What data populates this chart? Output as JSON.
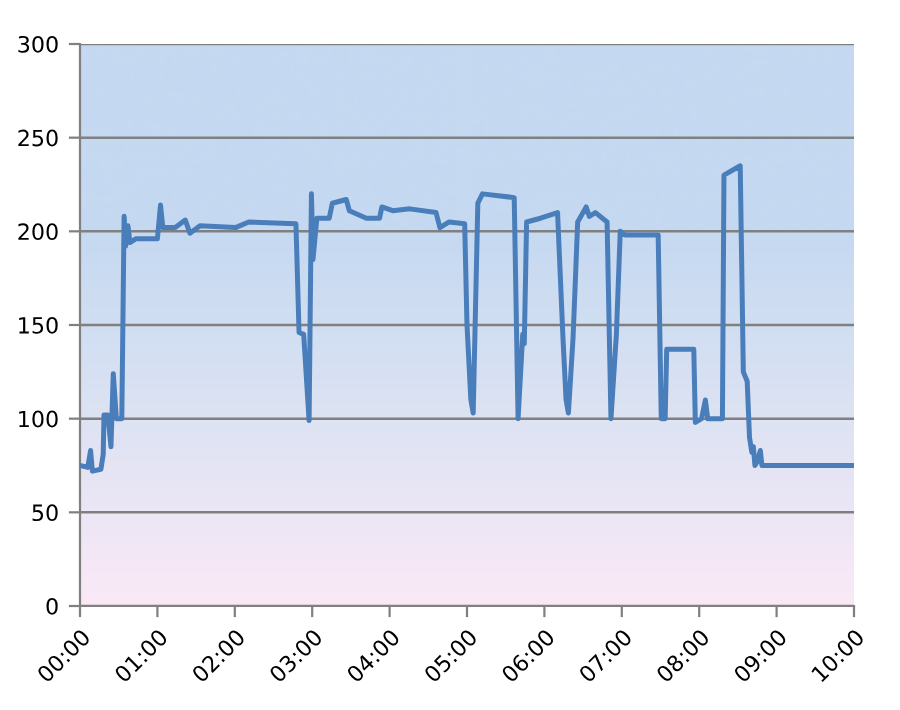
{
  "chart_data": {
    "type": "line",
    "x": [
      0.0,
      0.1,
      0.137,
      0.16,
      0.27,
      0.3,
      0.31,
      0.36,
      0.4,
      0.43,
      0.47,
      0.54,
      0.57,
      0.59,
      0.62,
      0.645,
      0.72,
      1.0,
      1.04,
      1.07,
      1.23,
      1.36,
      1.42,
      1.55,
      2.01,
      2.18,
      2.79,
      2.83,
      2.89,
      2.96,
      2.99,
      3.01,
      3.06,
      3.22,
      3.26,
      3.44,
      3.48,
      3.7,
      3.87,
      3.9,
      4.04,
      4.26,
      4.6,
      4.65,
      4.77,
      4.97,
      5.0,
      5.05,
      5.08,
      5.14,
      5.2,
      5.61,
      5.66,
      5.72,
      5.74,
      5.77,
      5.95,
      6.17,
      6.24,
      6.28,
      6.31,
      6.37,
      6.43,
      6.54,
      6.58,
      6.66,
      6.81,
      6.86,
      6.93,
      6.98,
      7.05,
      7.47,
      7.51,
      7.56,
      7.58,
      7.6,
      7.93,
      7.95,
      8.03,
      8.08,
      8.11,
      8.3,
      8.32,
      8.53,
      8.57,
      8.62,
      8.65,
      8.68,
      8.7,
      8.72,
      8.75,
      8.79,
      8.81,
      10.0
    ],
    "series": [
      {
        "color": "#4a7ebb",
        "values": [
          75,
          74,
          83,
          72,
          73,
          81,
          102,
          102,
          85,
          124,
          100,
          100,
          208,
          192,
          203,
          194,
          196,
          196,
          214,
          202,
          202,
          206,
          199,
          203,
          202,
          205,
          204,
          146,
          145,
          99,
          220,
          185,
          207,
          207,
          215,
          217,
          211,
          207,
          207,
          213,
          211,
          212,
          210,
          202,
          205,
          204,
          150,
          110,
          103,
          215,
          220,
          218,
          100,
          145,
          140,
          205,
          207,
          210,
          143,
          110,
          103,
          143,
          205,
          213,
          208,
          210,
          205,
          100,
          145,
          200,
          198,
          198,
          100,
          100,
          137,
          137,
          137,
          98,
          100,
          110,
          100,
          100,
          230,
          235,
          125,
          120,
          90,
          82,
          85,
          75,
          77,
          83,
          75,
          75
        ]
      }
    ],
    "xlim": [
      0,
      10
    ],
    "xticks": [
      {
        "value": 0,
        "label": "00:00"
      },
      {
        "value": 1,
        "label": "01:00"
      },
      {
        "value": 2,
        "label": "02:00"
      },
      {
        "value": 3,
        "label": "03:00"
      },
      {
        "value": 4,
        "label": "04:00"
      },
      {
        "value": 5,
        "label": "05:00"
      },
      {
        "value": 6,
        "label": "06:00"
      },
      {
        "value": 7,
        "label": "07:00"
      },
      {
        "value": 8,
        "label": "08:00"
      },
      {
        "value": 9,
        "label": "09:00"
      },
      {
        "value": 10,
        "label": "10:00"
      }
    ],
    "ylim": [
      0,
      300
    ],
    "yticks": [
      0,
      50,
      100,
      150,
      200,
      250,
      300
    ],
    "grid": "y",
    "marker": "none",
    "line_style": "solid"
  }
}
